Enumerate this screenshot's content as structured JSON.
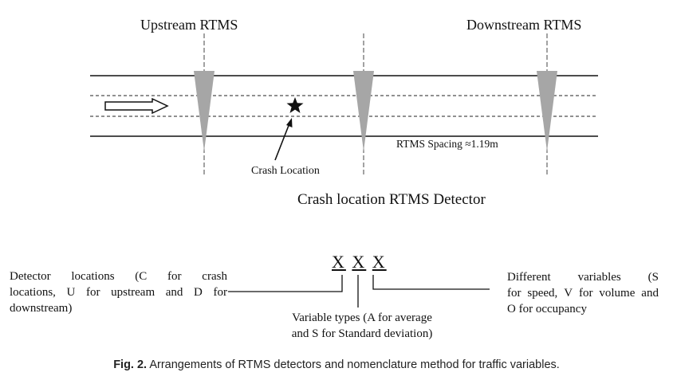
{
  "top": {
    "upstream_label": "Upstream RTMS",
    "downstream_label": "Downstream RTMS",
    "crash_location_label": "Crash Location",
    "spacing_label": "RTMS Spacing ≈1.19m",
    "subtitle": "Crash location RTMS Detector"
  },
  "nomenclature": {
    "code_letters": [
      "X",
      "X",
      "X"
    ],
    "left_lines": [
      [
        "Detector",
        "locations",
        "(C",
        "for",
        "crash"
      ],
      [
        "locations,",
        "U",
        "for",
        "upstream",
        "and",
        "D",
        "for"
      ],
      [
        "downstream)"
      ]
    ],
    "middle_lines": [
      "Variable types (A for average",
      "and S for Standard deviation)"
    ],
    "right_lines": [
      [
        "Different",
        "variables",
        "(S"
      ],
      [
        "for",
        "speed,",
        "V",
        "for",
        "volume",
        "and"
      ],
      [
        "O for occupancy"
      ]
    ]
  },
  "caption": {
    "label": "Fig. 2.",
    "text": "Arrangements of RTMS detectors and nomenclature method for traffic variables."
  },
  "colors": {
    "line": "#111111",
    "detector_fill": "#a6a6a6"
  }
}
